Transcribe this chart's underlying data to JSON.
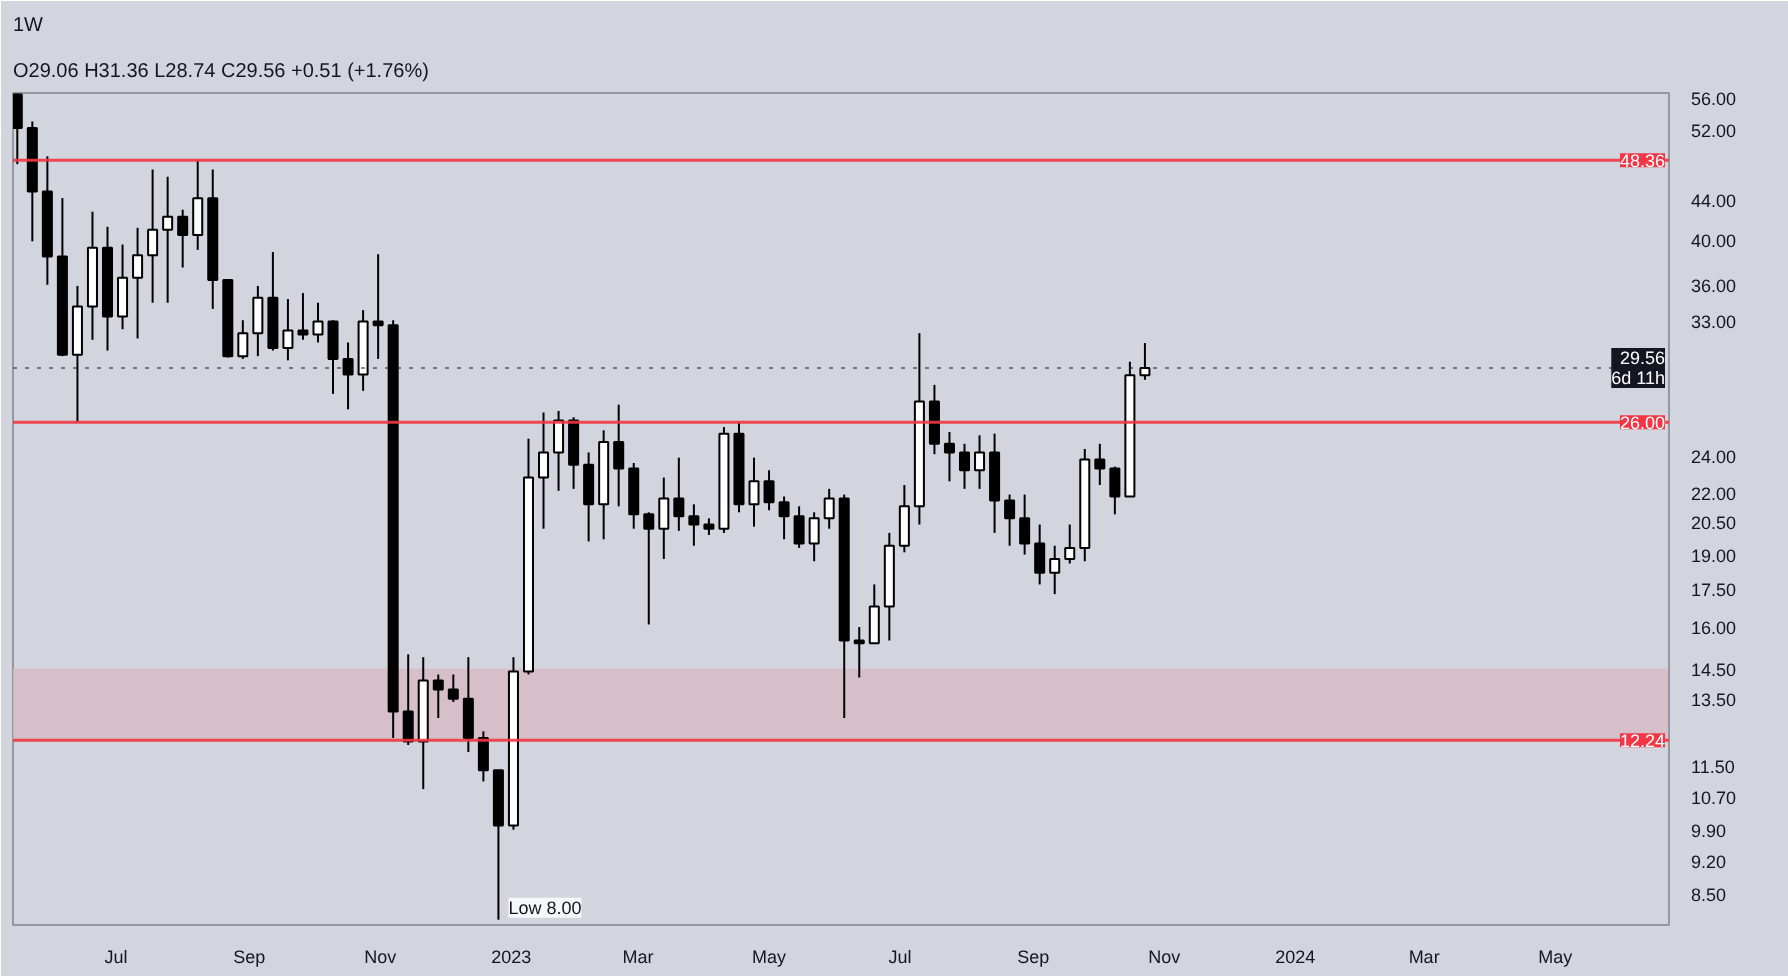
{
  "chart_data": {
    "type": "candlestick",
    "title": "1W",
    "subtitle": "O29.06 H31.36 L28.74 C29.56 +0.51 (+1.76%)",
    "x": [
      "2022-05-16",
      "2022-05-23",
      "2022-05-30",
      "2022-06-06",
      "2022-06-13",
      "2022-06-20",
      "2022-06-27",
      "2022-07-04",
      "2022-07-11",
      "2022-07-18",
      "2022-07-25",
      "2022-08-01",
      "2022-08-08",
      "2022-08-15",
      "2022-08-22",
      "2022-08-29",
      "2022-09-05",
      "2022-09-12",
      "2022-09-19",
      "2022-09-26",
      "2022-10-03",
      "2022-10-10",
      "2022-10-17",
      "2022-10-24",
      "2022-10-31",
      "2022-11-07",
      "2022-11-14",
      "2022-11-21",
      "2022-11-28",
      "2022-12-05",
      "2022-12-12",
      "2022-12-19",
      "2022-12-26",
      "2023-01-02",
      "2023-01-09",
      "2023-01-16",
      "2023-01-23",
      "2023-01-30",
      "2023-02-06",
      "2023-02-13",
      "2023-02-20",
      "2023-02-27",
      "2023-03-06",
      "2023-03-13",
      "2023-03-20",
      "2023-03-27",
      "2023-04-03",
      "2023-04-10",
      "2023-04-17",
      "2023-04-24",
      "2023-05-01",
      "2023-05-08",
      "2023-05-15",
      "2023-05-22",
      "2023-05-29",
      "2023-06-05",
      "2023-06-12",
      "2023-06-19",
      "2023-06-26",
      "2023-07-03",
      "2023-07-10",
      "2023-07-17",
      "2023-07-24",
      "2023-07-31",
      "2023-08-07",
      "2023-08-14",
      "2023-08-21",
      "2023-08-28",
      "2023-09-04",
      "2023-09-11",
      "2023-09-18",
      "2023-09-25",
      "2023-10-02",
      "2023-10-09",
      "2023-10-16",
      "2023-10-23"
    ],
    "ohlc": [
      [
        56.5,
        56.6,
        47.9,
        52.2
      ],
      [
        52.2,
        53,
        39.9,
        44.9
      ],
      [
        44.9,
        48.8,
        36.0,
        38.5
      ],
      [
        38.5,
        44.2,
        30.4,
        30.5
      ],
      [
        30.5,
        35.9,
        26.0,
        34.2
      ],
      [
        34.2,
        42.8,
        31.6,
        39.3
      ],
      [
        39.3,
        41.3,
        30.8,
        33.4
      ],
      [
        33.4,
        39.6,
        32.4,
        36.6
      ],
      [
        36.6,
        41.2,
        31.7,
        38.6
      ],
      [
        38.6,
        47.3,
        34.5,
        41.0
      ],
      [
        41.0,
        46.5,
        34.5,
        42.3
      ],
      [
        42.3,
        43.0,
        37.5,
        40.5
      ],
      [
        40.5,
        48.4,
        39.1,
        44.2
      ],
      [
        44.2,
        47.3,
        34.0,
        36.4
      ],
      [
        36.4,
        36.4,
        30.3,
        30.4
      ],
      [
        30.4,
        33.1,
        30.2,
        32.1
      ],
      [
        32.1,
        35.9,
        30.4,
        34.9
      ],
      [
        34.9,
        38.9,
        30.8,
        31.0
      ],
      [
        31.0,
        34.8,
        30.1,
        32.3
      ],
      [
        32.3,
        35.3,
        31.6,
        32.0
      ],
      [
        32.0,
        34.5,
        31.4,
        33.0
      ],
      [
        33.0,
        33.1,
        27.8,
        30.2
      ],
      [
        30.2,
        31.4,
        26.8,
        29.1
      ],
      [
        29.1,
        33.9,
        28.0,
        33.0
      ],
      [
        33.0,
        38.7,
        30.2,
        32.7
      ],
      [
        32.7,
        33.1,
        12.3,
        13.1
      ],
      [
        13.1,
        15.0,
        12.1,
        12.2
      ],
      [
        12.2,
        14.9,
        10.9,
        14.1
      ],
      [
        14.1,
        14.3,
        12.9,
        13.8
      ],
      [
        13.8,
        14.3,
        13.4,
        13.5
      ],
      [
        13.5,
        14.9,
        11.9,
        12.3
      ],
      [
        12.3,
        12.5,
        11.1,
        11.4
      ],
      [
        11.4,
        11.4,
        8.0,
        10.0
      ],
      [
        10.0,
        14.9,
        9.9,
        14.4
      ],
      [
        14.4,
        25.0,
        14.3,
        22.8
      ],
      [
        22.8,
        26.6,
        20.2,
        24.2
      ],
      [
        24.2,
        26.7,
        22.1,
        26.1
      ],
      [
        26.1,
        26.3,
        22.2,
        23.5
      ],
      [
        23.5,
        24.2,
        19.6,
        21.4
      ],
      [
        21.4,
        25.5,
        19.7,
        24.8
      ],
      [
        24.8,
        27.1,
        21.3,
        23.3
      ],
      [
        23.3,
        23.6,
        20.2,
        20.9
      ],
      [
        20.9,
        21.0,
        16.1,
        20.2
      ],
      [
        20.2,
        22.8,
        18.8,
        21.7
      ],
      [
        21.7,
        23.9,
        20.1,
        20.8
      ],
      [
        20.8,
        21.4,
        19.4,
        20.4
      ],
      [
        20.4,
        20.7,
        19.9,
        20.2
      ],
      [
        20.2,
        25.7,
        20.0,
        25.3
      ],
      [
        25.3,
        26.0,
        21.0,
        21.4
      ],
      [
        21.4,
        23.9,
        20.3,
        22.6
      ],
      [
        22.6,
        23.2,
        21.1,
        21.5
      ],
      [
        21.5,
        21.8,
        19.7,
        20.8
      ],
      [
        20.8,
        21.3,
        19.3,
        19.5
      ],
      [
        19.5,
        21.0,
        18.7,
        20.7
      ],
      [
        20.7,
        22.2,
        20.2,
        21.7
      ],
      [
        21.7,
        21.9,
        12.9,
        15.5
      ],
      [
        15.5,
        16.0,
        14.2,
        15.4
      ],
      [
        15.4,
        17.7,
        15.4,
        16.8
      ],
      [
        16.8,
        20.0,
        15.5,
        19.4
      ],
      [
        19.4,
        22.4,
        19.1,
        21.3
      ],
      [
        21.3,
        32.1,
        20.4,
        27.3
      ],
      [
        27.3,
        28.4,
        24.1,
        24.7
      ],
      [
        24.7,
        25.4,
        22.6,
        24.2
      ],
      [
        24.2,
        24.7,
        22.2,
        23.2
      ],
      [
        23.2,
        25.2,
        22.2,
        24.2
      ],
      [
        24.2,
        25.3,
        20.0,
        21.6
      ],
      [
        21.6,
        21.9,
        19.4,
        20.7
      ],
      [
        20.7,
        21.9,
        19.0,
        19.5
      ],
      [
        19.5,
        20.4,
        17.7,
        18.2
      ],
      [
        18.2,
        19.4,
        17.3,
        18.8
      ],
      [
        18.8,
        20.4,
        18.6,
        19.3
      ],
      [
        19.3,
        24.4,
        18.7,
        23.8
      ],
      [
        23.8,
        24.7,
        22.4,
        23.3
      ],
      [
        23.3,
        23.4,
        20.9,
        21.8
      ],
      [
        21.8,
        30.0,
        21.8,
        29.06
      ],
      [
        29.06,
        31.36,
        28.74,
        29.56
      ]
    ],
    "colors": [
      "#000000",
      "#000000",
      "#000000",
      "#000000",
      "#ffffff",
      "#ffffff",
      "#000000",
      "#ffffff",
      "#ffffff",
      "#ffffff",
      "#ffffff",
      "#000000",
      "#ffffff",
      "#000000",
      "#000000",
      "#ffffff",
      "#ffffff",
      "#000000",
      "#ffffff",
      "#000000",
      "#ffffff",
      "#000000",
      "#000000",
      "#ffffff",
      "#000000",
      "#000000",
      "#000000",
      "#ffffff",
      "#000000",
      "#000000",
      "#000000",
      "#000000",
      "#000000",
      "#ffffff",
      "#ffffff",
      "#ffffff",
      "#ffffff",
      "#000000",
      "#000000",
      "#ffffff",
      "#000000",
      "#000000",
      "#000000",
      "#ffffff",
      "#000000",
      "#000000",
      "#000000",
      "#ffffff",
      "#000000",
      "#ffffff",
      "#000000",
      "#000000",
      "#000000",
      "#ffffff",
      "#ffffff",
      "#000000",
      "#000000",
      "#ffffff",
      "#ffffff",
      "#ffffff",
      "#ffffff",
      "#000000",
      "#000000",
      "#000000",
      "#ffffff",
      "#000000",
      "#000000",
      "#000000",
      "#000000",
      "#ffffff",
      "#ffffff",
      "#ffffff",
      "#000000",
      "#000000",
      "#ffffff",
      "#ffffff"
    ],
    "xlim": [
      "2022-05-14",
      "2024-06-23"
    ],
    "xticks": [
      {
        "value": "2022-07-01",
        "label": "Jul"
      },
      {
        "value": "2022-09-01",
        "label": "Sep"
      },
      {
        "value": "2022-11-01",
        "label": "Nov"
      },
      {
        "value": "2023-01-01",
        "label": "2023"
      },
      {
        "value": "2023-03-01",
        "label": "Mar"
      },
      {
        "value": "2023-05-01",
        "label": "May"
      },
      {
        "value": "2023-07-01",
        "label": "Jul"
      },
      {
        "value": "2023-09-01",
        "label": "Sep"
      },
      {
        "value": "2023-11-01",
        "label": "Nov"
      },
      {
        "value": "2024-01-01",
        "label": "2024"
      },
      {
        "value": "2024-03-01",
        "label": "Mar"
      },
      {
        "value": "2024-05-01",
        "label": "May"
      }
    ],
    "log": true,
    "ylim": [
      7.9,
      56.7
    ],
    "yticks": [
      {
        "value": 8.5,
        "label": "8.50"
      },
      {
        "value": 9.2,
        "label": "9.20"
      },
      {
        "value": 9.9,
        "label": "9.90"
      },
      {
        "value": 10.7,
        "label": "10.70"
      },
      {
        "value": 11.5,
        "label": "11.50"
      },
      {
        "value": 13.5,
        "label": "13.50"
      },
      {
        "value": 14.5,
        "label": "14.50"
      },
      {
        "value": 16,
        "label": "16.00"
      },
      {
        "value": 17.5,
        "label": "17.50"
      },
      {
        "value": 19,
        "label": "19.00"
      },
      {
        "value": 20.5,
        "label": "20.50"
      },
      {
        "value": 22,
        "label": "22.00"
      },
      {
        "value": 24,
        "label": "24.00"
      },
      {
        "value": 33,
        "label": "33.00"
      },
      {
        "value": 36,
        "label": "36.00"
      },
      {
        "value": 40,
        "label": "40.00"
      },
      {
        "value": 44,
        "label": "44.00"
      },
      {
        "value": 52,
        "label": "52.00"
      },
      {
        "value": 56,
        "label": "56.00"
      }
    ],
    "ref_lines": [
      {
        "axis": "y",
        "value": 48.36,
        "label": "48.36",
        "color": "#f23645",
        "line_style": "solid"
      },
      {
        "axis": "y",
        "value": 26,
        "label": "26.00",
        "color": "#f23645",
        "line_style": "solid"
      },
      {
        "axis": "y",
        "value": 12.24,
        "label": "12.24",
        "color": "#f23645",
        "line_style": "solid"
      },
      {
        "axis": "y",
        "value": 29.56,
        "label": "29.56\n6d 11h",
        "color": "#131722",
        "line_style": "dotted"
      }
    ],
    "bands": [
      {
        "axis": "y",
        "from": 12.24,
        "to": 14.5,
        "color": "#d8b9c4"
      }
    ],
    "annotations": [
      {
        "text": "Low 8.00",
        "x": "2022-12-26",
        "y": 8.0
      }
    ],
    "grid": false
  }
}
